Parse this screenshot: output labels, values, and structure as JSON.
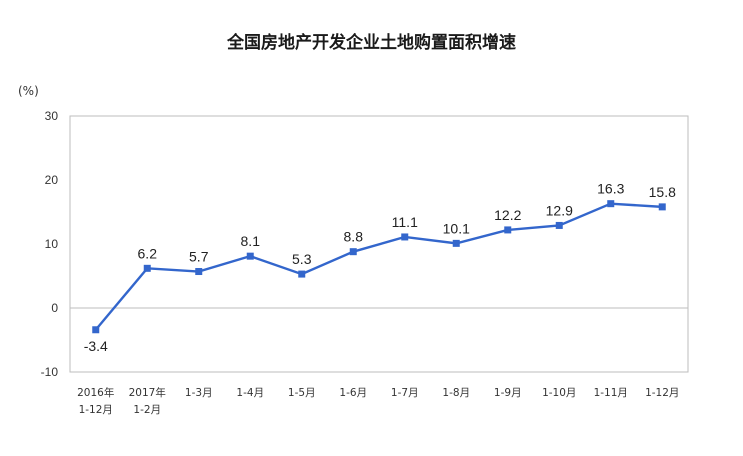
{
  "chart_data": {
    "type": "line",
    "title": "全国房地产开发企业土地购置面积增速",
    "ylabel": "(%)",
    "ylim": [
      -10,
      30
    ],
    "yticks": [
      30,
      20,
      10,
      0,
      -10
    ],
    "grid": false,
    "categories": [
      [
        "2016年",
        "1-12月"
      ],
      [
        "2017年",
        "1-2月"
      ],
      [
        "1-3月"
      ],
      [
        "1-4月"
      ],
      [
        "1-5月"
      ],
      [
        "1-6月"
      ],
      [
        "1-7月"
      ],
      [
        "1-8月"
      ],
      [
        "1-9月"
      ],
      [
        "1-10月"
      ],
      [
        "1-11月"
      ],
      [
        "1-12月"
      ]
    ],
    "series": [
      {
        "values": [
          -3.4,
          6.2,
          5.7,
          8.1,
          5.3,
          8.8,
          11.1,
          10.1,
          12.2,
          12.9,
          16.3,
          15.8
        ],
        "labels": [
          "-3.4",
          "6.2",
          "5.7",
          "8.1",
          "5.3",
          "8.8",
          "11.1",
          "10.1",
          "12.2",
          "12.9",
          "16.3",
          "15.8"
        ],
        "color": "#3366cc"
      }
    ]
  }
}
